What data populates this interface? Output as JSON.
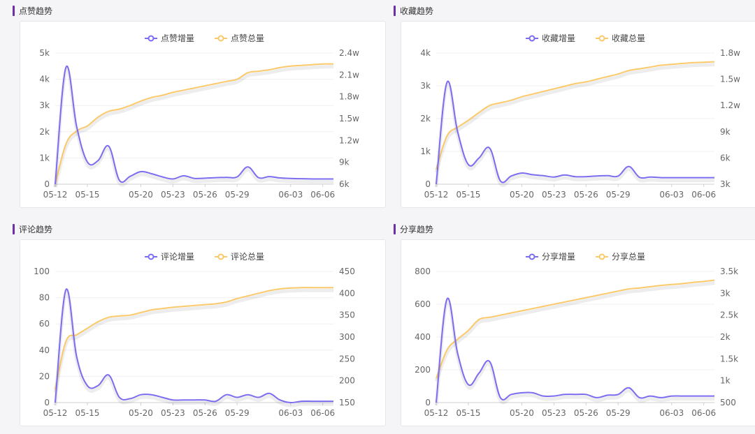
{
  "sections": [
    {
      "title": "点赞趋势"
    },
    {
      "title": "收藏趋势"
    },
    {
      "title": "评论趋势"
    },
    {
      "title": "分享趋势"
    }
  ],
  "colors": {
    "increment": "#7b6cf0",
    "total": "#fbc96a",
    "accent": "#6b2fa8"
  },
  "chart_data": [
    {
      "type": "line",
      "title": "点赞趋势",
      "x": [
        "05-12",
        "05-13",
        "05-14",
        "05-15",
        "05-16",
        "05-17",
        "05-18",
        "05-19",
        "05-20",
        "05-21",
        "05-22",
        "05-23",
        "05-24",
        "05-25",
        "05-26",
        "05-27",
        "05-28",
        "05-29",
        "05-30",
        "05-31",
        "06-01",
        "06-02",
        "06-03",
        "06-04",
        "06-05",
        "06-06",
        "06-07"
      ],
      "xtick_labels": [
        "05-12",
        "05-15",
        "05-20",
        "05-23",
        "05-26",
        "05-29",
        "06-03",
        "06-06"
      ],
      "legend_position": "top-center",
      "left_axis": {
        "ticks": [
          "0",
          "1k",
          "2k",
          "3k",
          "4k",
          "5k"
        ],
        "ylim": [
          0,
          5000
        ]
      },
      "right_axis": {
        "ticks": [
          "6k",
          "9k",
          "1.2w",
          "1.5w",
          "1.8w",
          "2.1w",
          "2.4w"
        ],
        "ylim": [
          6000,
          24000
        ]
      },
      "series": [
        {
          "name": "点赞增量",
          "axis": "left",
          "values": [
            0,
            4450,
            2200,
            850,
            900,
            1450,
            150,
            300,
            480,
            400,
            280,
            200,
            320,
            220,
            230,
            250,
            260,
            280,
            660,
            250,
            290,
            240,
            220,
            210,
            200,
            200,
            200
          ]
        },
        {
          "name": "点赞总量",
          "axis": "right",
          "values": [
            6000,
            11500,
            13300,
            14000,
            15200,
            16000,
            16300,
            16800,
            17400,
            17900,
            18200,
            18600,
            18900,
            19200,
            19500,
            19800,
            20100,
            20400,
            21300,
            21500,
            21700,
            22000,
            22200,
            22300,
            22400,
            22500,
            22500
          ]
        }
      ]
    },
    {
      "type": "line",
      "title": "收藏趋势",
      "x": [
        "05-12",
        "05-13",
        "05-14",
        "05-15",
        "05-16",
        "05-17",
        "05-18",
        "05-19",
        "05-20",
        "05-21",
        "05-22",
        "05-23",
        "05-24",
        "05-25",
        "05-26",
        "05-27",
        "05-28",
        "05-29",
        "05-30",
        "05-31",
        "06-01",
        "06-02",
        "06-03",
        "06-04",
        "06-05",
        "06-06",
        "06-07"
      ],
      "xtick_labels": [
        "05-12",
        "05-15",
        "05-20",
        "05-23",
        "05-26",
        "05-29",
        "06-03",
        "06-06"
      ],
      "legend_position": "top-center",
      "left_axis": {
        "ticks": [
          "0",
          "1k",
          "2k",
          "3k",
          "4k"
        ],
        "ylim": [
          0,
          4000
        ]
      },
      "right_axis": {
        "ticks": [
          "3k",
          "6k",
          "9k",
          "1.2w",
          "1.5w",
          "1.8w"
        ],
        "ylim": [
          3000,
          18000
        ]
      },
      "series": [
        {
          "name": "收藏增量",
          "axis": "left",
          "values": [
            0,
            3100,
            1600,
            600,
            800,
            1100,
            100,
            250,
            340,
            290,
            260,
            220,
            280,
            230,
            230,
            250,
            260,
            250,
            540,
            210,
            220,
            200,
            200,
            200,
            200,
            200,
            200
          ]
        },
        {
          "name": "收藏总量",
          "axis": "right",
          "values": [
            4700,
            8500,
            9500,
            10300,
            11200,
            12000,
            12300,
            12600,
            13000,
            13300,
            13600,
            13900,
            14200,
            14500,
            14700,
            15000,
            15300,
            15600,
            16000,
            16200,
            16400,
            16600,
            16700,
            16800,
            16900,
            16950,
            17000
          ]
        }
      ]
    },
    {
      "type": "line",
      "title": "评论趋势",
      "x": [
        "05-12",
        "05-13",
        "05-14",
        "05-15",
        "05-16",
        "05-17",
        "05-18",
        "05-19",
        "05-20",
        "05-21",
        "05-22",
        "05-23",
        "05-24",
        "05-25",
        "05-26",
        "05-27",
        "05-28",
        "05-29",
        "05-30",
        "05-31",
        "06-01",
        "06-02",
        "06-03",
        "06-04",
        "06-05",
        "06-06",
        "06-07"
      ],
      "xtick_labels": [
        "05-12",
        "05-15",
        "05-20",
        "05-23",
        "05-26",
        "05-29",
        "06-03",
        "06-06"
      ],
      "legend_position": "top-center",
      "left_axis": {
        "ticks": [
          "0",
          "20",
          "40",
          "60",
          "80",
          "100"
        ],
        "ylim": [
          0,
          100
        ]
      },
      "right_axis": {
        "ticks": [
          "150",
          "200",
          "250",
          "300",
          "350",
          "400",
          "450"
        ],
        "ylim": [
          150,
          450
        ]
      },
      "series": [
        {
          "name": "评论增量",
          "axis": "left",
          "values": [
            0,
            86,
            35,
            13,
            13,
            21,
            4,
            3,
            6,
            6,
            4,
            2,
            2,
            2,
            2,
            1,
            6,
            4,
            6,
            4,
            7,
            2,
            0,
            1,
            1,
            1,
            1
          ]
        },
        {
          "name": "评论总量",
          "axis": "right",
          "values": [
            180,
            290,
            305,
            320,
            335,
            345,
            348,
            350,
            356,
            362,
            365,
            368,
            370,
            372,
            374,
            376,
            380,
            388,
            394,
            400,
            406,
            410,
            412,
            413,
            413,
            413,
            413
          ]
        }
      ]
    },
    {
      "type": "line",
      "title": "分享趋势",
      "x": [
        "05-12",
        "05-13",
        "05-14",
        "05-15",
        "05-16",
        "05-17",
        "05-18",
        "05-19",
        "05-20",
        "05-21",
        "05-22",
        "05-23",
        "05-24",
        "05-25",
        "05-26",
        "05-27",
        "05-28",
        "05-29",
        "05-30",
        "05-31",
        "06-01",
        "06-02",
        "06-03",
        "06-04",
        "06-05",
        "06-06",
        "06-07"
      ],
      "xtick_labels": [
        "05-12",
        "05-15",
        "05-20",
        "05-23",
        "05-26",
        "05-29",
        "06-03",
        "06-06"
      ],
      "legend_position": "top-center",
      "left_axis": {
        "ticks": [
          "0",
          "200",
          "400",
          "600",
          "800"
        ],
        "ylim": [
          0,
          800
        ]
      },
      "right_axis": {
        "ticks": [
          "500",
          "1k",
          "1.5k",
          "2k",
          "2.5k",
          "3k",
          "3.5k"
        ],
        "ylim": [
          500,
          3500
        ]
      },
      "series": [
        {
          "name": "分享增量",
          "axis": "left",
          "values": [
            0,
            630,
            300,
            110,
            180,
            250,
            30,
            50,
            60,
            60,
            40,
            40,
            50,
            50,
            50,
            30,
            45,
            50,
            90,
            30,
            40,
            30,
            40,
            40,
            40,
            40,
            40
          ]
        },
        {
          "name": "分享总量",
          "axis": "right",
          "values": [
            1050,
            1700,
            1950,
            2150,
            2400,
            2450,
            2500,
            2550,
            2600,
            2650,
            2700,
            2750,
            2800,
            2850,
            2900,
            2950,
            3000,
            3050,
            3100,
            3120,
            3150,
            3180,
            3200,
            3220,
            3250,
            3270,
            3300
          ]
        }
      ]
    }
  ]
}
